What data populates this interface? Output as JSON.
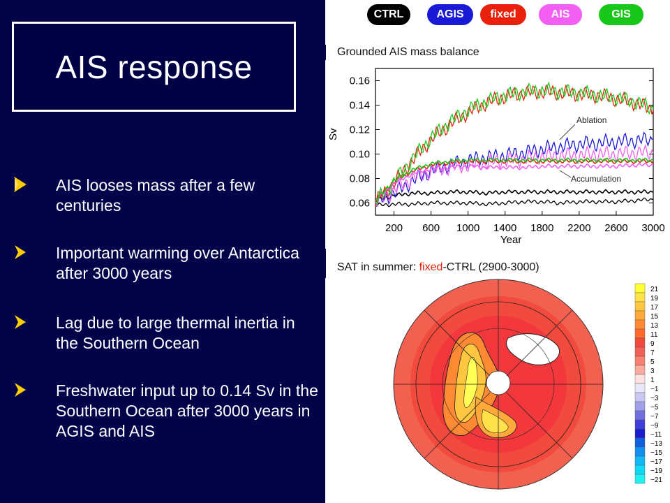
{
  "slide": {
    "title": "AIS response",
    "bullets": [
      "AIS looses mass after a few centuries",
      "Important warming over Antarctica after 3000 years",
      "Lag due to large thermal inertia in the Southern Ocean",
      "Freshwater input up to 0.14 Sv in the Southern Ocean after 3000 years in AGIS and AIS"
    ]
  },
  "legend": [
    {
      "label": "CTRL",
      "color": "#000000"
    },
    {
      "label": "AGIS",
      "color": "#1a1ad6"
    },
    {
      "label": "fixed",
      "color": "#e8200c"
    },
    {
      "label": "AIS",
      "color": "#f25ff2"
    },
    {
      "label": "GIS",
      "color": "#18c818"
    }
  ],
  "top_chart": {
    "caption": "Grounded AIS mass balance",
    "ablation_label": "Ablation",
    "accumulation_label": "Accumulation"
  },
  "bottom_chart": {
    "caption_prefix": "SAT in summer: ",
    "caption_fixed": "fixed",
    "caption_suffix": "-CTRL (2900-3000)",
    "colorbar_labels": [
      "21",
      "19",
      "17",
      "15",
      "13",
      "11",
      "9",
      "7",
      "5",
      "3",
      "1",
      "−1",
      "−3",
      "−5",
      "−7",
      "−9",
      "−11",
      "−13",
      "−15",
      "−17",
      "−19",
      "−21"
    ],
    "colorbar_colors": [
      "#ffff33",
      "#ffe14a",
      "#ffc640",
      "#ffa93a",
      "#ff8a33",
      "#ff6a2a",
      "#f24a3c",
      "#f26055",
      "#f78070",
      "#fbaaa0",
      "#fde0e0",
      "#e8e8f8",
      "#c8c8f0",
      "#a0a0ea",
      "#7070e0",
      "#4040d8",
      "#1c1cd0",
      "#1060e0",
      "#1090f0",
      "#10b8f8",
      "#10d8f8",
      "#20f0f0"
    ]
  },
  "chart_data": {
    "type": "line",
    "title": "Grounded AIS mass balance",
    "xlabel": "Year",
    "ylabel": "Sv",
    "x_ticks": [
      200,
      600,
      1000,
      1400,
      1800,
      2200,
      2600,
      3000
    ],
    "y_ticks": [
      0.06,
      0.08,
      0.1,
      0.12,
      0.14,
      0.16
    ],
    "xlim": [
      0,
      3000
    ],
    "ylim": [
      0.05,
      0.17
    ],
    "series": [
      {
        "name": "CTRL",
        "color": "#000000",
        "group": "Ablation",
        "x": [
          0,
          200,
          400,
          600,
          800,
          1000,
          1200,
          1400,
          1600,
          1800,
          2000,
          2200,
          2400,
          2600,
          2800,
          3000
        ],
        "y": [
          0.058,
          0.059,
          0.059,
          0.06,
          0.06,
          0.06,
          0.059,
          0.06,
          0.061,
          0.061,
          0.06,
          0.061,
          0.061,
          0.061,
          0.062,
          0.063
        ]
      },
      {
        "name": "CTRL",
        "color": "#000000",
        "group": "Accumulation",
        "x": [
          0,
          200,
          400,
          600,
          800,
          1000,
          1200,
          1400,
          1600,
          1800,
          2000,
          2200,
          2400,
          2600,
          2800,
          3000
        ],
        "y": [
          0.062,
          0.066,
          0.068,
          0.068,
          0.069,
          0.069,
          0.068,
          0.069,
          0.069,
          0.069,
          0.069,
          0.069,
          0.069,
          0.069,
          0.069,
          0.069
        ]
      },
      {
        "name": "AGIS",
        "color": "#1a1ad6",
        "group": "Ablation",
        "x": [
          0,
          200,
          400,
          600,
          800,
          1000,
          1200,
          1400,
          1600,
          1800,
          2000,
          2200,
          2400,
          2600,
          2800,
          3000
        ],
        "y": [
          0.06,
          0.068,
          0.078,
          0.086,
          0.091,
          0.095,
          0.097,
          0.099,
          0.101,
          0.104,
          0.106,
          0.108,
          0.109,
          0.11,
          0.111,
          0.112
        ]
      },
      {
        "name": "fixed",
        "color": "#e8200c",
        "group": "Ablation",
        "x": [
          0,
          200,
          400,
          600,
          800,
          1000,
          1200,
          1400,
          1600,
          1800,
          2000,
          2200,
          2400,
          2600,
          2800,
          3000
        ],
        "y": [
          0.061,
          0.076,
          0.095,
          0.112,
          0.124,
          0.134,
          0.142,
          0.147,
          0.15,
          0.151,
          0.15,
          0.149,
          0.148,
          0.145,
          0.142,
          0.136
        ]
      },
      {
        "name": "AIS",
        "color": "#f25ff2",
        "group": "Ablation",
        "x": [
          0,
          200,
          400,
          600,
          800,
          1000,
          1200,
          1400,
          1600,
          1800,
          2000,
          2200,
          2400,
          2600,
          2800,
          3000
        ],
        "y": [
          0.06,
          0.07,
          0.08,
          0.086,
          0.089,
          0.091,
          0.093,
          0.095,
          0.096,
          0.098,
          0.099,
          0.099,
          0.1,
          0.1,
          0.101,
          0.101
        ]
      },
      {
        "name": "GIS",
        "color": "#18c818",
        "group": "Ablation",
        "x": [
          0,
          200,
          400,
          600,
          800,
          1000,
          1200,
          1400,
          1600,
          1800,
          2000,
          2200,
          2400,
          2600,
          2800,
          3000
        ],
        "y": [
          0.061,
          0.077,
          0.096,
          0.113,
          0.126,
          0.136,
          0.143,
          0.148,
          0.151,
          0.152,
          0.151,
          0.15,
          0.148,
          0.146,
          0.143,
          0.137
        ]
      },
      {
        "name": "fixed",
        "color": "#e8200c",
        "group": "Accumulation",
        "x": [
          0,
          200,
          400,
          600,
          800,
          1000,
          1200,
          1400,
          1600,
          1800,
          2000,
          2200,
          2400,
          2600,
          2800,
          3000
        ],
        "y": [
          0.062,
          0.077,
          0.086,
          0.091,
          0.093,
          0.094,
          0.094,
          0.094,
          0.094,
          0.094,
          0.094,
          0.094,
          0.094,
          0.094,
          0.094,
          0.094
        ]
      },
      {
        "name": "AIS",
        "color": "#f25ff2",
        "group": "Accumulation",
        "x": [
          0,
          200,
          400,
          600,
          800,
          1000,
          1200,
          1400,
          1600,
          1800,
          2000,
          2200,
          2400,
          2600,
          2800,
          3000
        ],
        "y": [
          0.062,
          0.076,
          0.084,
          0.088,
          0.089,
          0.09,
          0.089,
          0.089,
          0.089,
          0.09,
          0.09,
          0.09,
          0.09,
          0.09,
          0.091,
          0.091
        ]
      },
      {
        "name": "GIS",
        "color": "#18c818",
        "group": "Accumulation",
        "x": [
          0,
          200,
          400,
          600,
          800,
          1000,
          1200,
          1400,
          1600,
          1800,
          2000,
          2200,
          2400,
          2600,
          2800,
          3000
        ],
        "y": [
          0.062,
          0.078,
          0.087,
          0.092,
          0.094,
          0.095,
          0.095,
          0.095,
          0.095,
          0.095,
          0.095,
          0.095,
          0.095,
          0.095,
          0.095,
          0.095
        ]
      }
    ]
  }
}
